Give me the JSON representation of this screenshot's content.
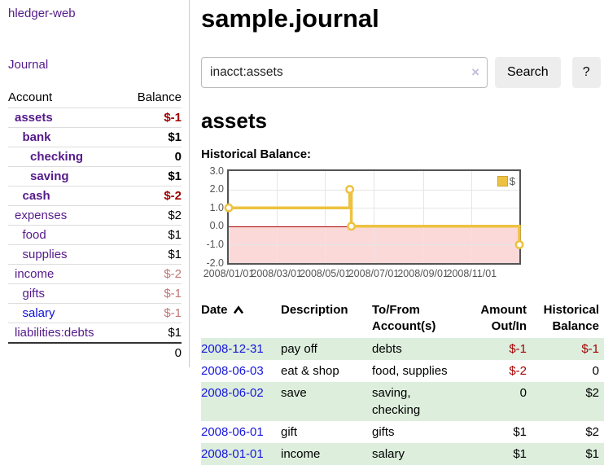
{
  "app": {
    "brand": "hledger-web",
    "nav": {
      "journal": "Journal"
    }
  },
  "sidebar": {
    "header": {
      "account": "Account",
      "balance": "Balance"
    },
    "accounts": [
      {
        "name": "assets",
        "indent": 1,
        "bold": true,
        "balance": "$-1",
        "balance_style": "neg"
      },
      {
        "name": "bank",
        "indent": 2,
        "bold": true,
        "balance": "$1",
        "balance_style": "pos"
      },
      {
        "name": "checking",
        "indent": 3,
        "bold": true,
        "balance": "0",
        "balance_style": "pos"
      },
      {
        "name": "saving",
        "indent": 3,
        "bold": true,
        "balance": "$1",
        "balance_style": "pos"
      },
      {
        "name": "cash",
        "indent": 2,
        "bold": true,
        "balance": "$-2",
        "balance_style": "neg"
      },
      {
        "name": "expenses",
        "indent": 1,
        "bold": false,
        "balance": "$2",
        "balance_style": "pos"
      },
      {
        "name": "food",
        "indent": 2,
        "bold": false,
        "balance": "$1",
        "balance_style": "pos"
      },
      {
        "name": "supplies",
        "indent": 2,
        "bold": false,
        "balance": "$1",
        "balance_style": "pos"
      },
      {
        "name": "income",
        "indent": 1,
        "bold": false,
        "balance": "$-2",
        "balance_style": "negsoft"
      },
      {
        "name": "gifts",
        "indent": 2,
        "bold": false,
        "balance": "$-1",
        "balance_style": "negsoft"
      },
      {
        "name": "salary",
        "indent": 2,
        "bold": false,
        "link_style": "unvisited",
        "balance": "$-1",
        "balance_style": "negsoft"
      },
      {
        "name": "liabilities:debts",
        "indent": 1,
        "bold": false,
        "balance": "$1",
        "balance_style": "pos"
      }
    ],
    "total": "0"
  },
  "header": {
    "title": "sample.journal"
  },
  "search": {
    "query": "inacct:assets",
    "clear_icon": "×",
    "button_label": "Search",
    "help_label": "?"
  },
  "account_page": {
    "title": "assets",
    "chart_label": "Historical Balance:"
  },
  "chart_data": {
    "type": "line",
    "title": "Historical Balance:",
    "step": "after",
    "series": [
      {
        "name": "$",
        "color": "#edc240",
        "points": [
          {
            "x": "2008-01-01",
            "y": 1
          },
          {
            "x": "2008-06-01",
            "y": 2
          },
          {
            "x": "2008-06-03",
            "y": 0
          },
          {
            "x": "2008-12-31",
            "y": -1
          }
        ]
      }
    ],
    "xlim": [
      "2008-01-01",
      "2008-12-31"
    ],
    "ylim": [
      -2,
      3
    ],
    "x_ticks": [
      "2008/01/01",
      "2008/03/01",
      "2008/05/01",
      "2008/07/01",
      "2008/09/01",
      "2008/11/01"
    ],
    "y_ticks": [
      "3.0",
      "2.0",
      "1.0",
      "0.0",
      "-1.0",
      "-2.0"
    ],
    "grid": true,
    "legend_position": "top-right",
    "negative_region_color": "#fbd9d9",
    "zero_line_color": "#a80000"
  },
  "register": {
    "columns": {
      "date": "Date",
      "description": "Description",
      "accounts": "To/From Account(s)",
      "amount": "Amount Out/In",
      "balance": "Historical Balance"
    },
    "rows": [
      {
        "date": "2008-12-31",
        "description": "pay off",
        "accounts": "debts",
        "amount": "$-1",
        "amount_neg": true,
        "balance": "$-1",
        "balance_neg": true
      },
      {
        "date": "2008-06-03",
        "description": "eat & shop",
        "accounts": "food, supplies",
        "amount": "$-2",
        "amount_neg": true,
        "balance": "0",
        "balance_neg": false
      },
      {
        "date": "2008-06-02",
        "description": "save",
        "accounts": "saving, checking",
        "amount": "0",
        "amount_neg": false,
        "balance": "$2",
        "balance_neg": false
      },
      {
        "date": "2008-06-01",
        "description": "gift",
        "accounts": "gifts",
        "amount": "$1",
        "amount_neg": false,
        "balance": "$2",
        "balance_neg": false
      },
      {
        "date": "2008-01-01",
        "description": "income",
        "accounts": "salary",
        "amount": "$1",
        "amount_neg": false,
        "balance": "$1",
        "balance_neg": false
      }
    ]
  },
  "colors": {
    "link_visited": "#551a8b",
    "link_unvisited": "#1010d8",
    "negative": "#a10000",
    "negative_soft": "#c17575",
    "row_stripe_green": "#ddeedd",
    "series_yellow": "#edc240"
  }
}
